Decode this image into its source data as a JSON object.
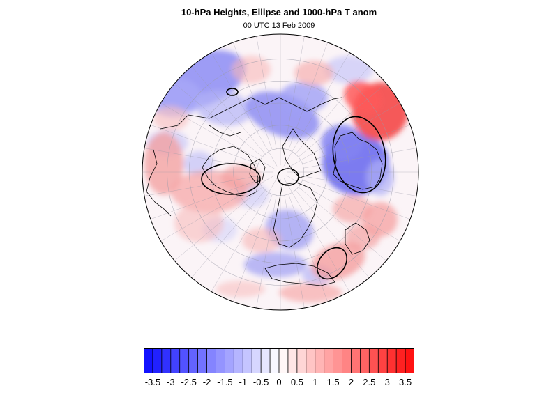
{
  "title": "10-hPa Heights, Ellipse and 1000-hPa T anom",
  "subtitle": "00 UTC 13 Feb 2009",
  "map": {
    "projection": "polar-stereographic-north",
    "background": "#ffffff",
    "grid_color": "#9a9aa8",
    "coastline_color": "#000000",
    "ellipse_color": "#000000",
    "cold_color": "#1212ff",
    "warm_color": "#ff1212",
    "neutral_color": "#ffffff"
  },
  "colorbar": {
    "levels": [
      -3.75,
      -3.5,
      -3.25,
      -3,
      -2.75,
      -2.5,
      -2.25,
      -2,
      -1.75,
      -1.5,
      -1.25,
      -1,
      -0.75,
      -0.5,
      -0.25,
      0,
      0.25,
      0.5,
      0.75,
      1,
      1.25,
      1.5,
      1.75,
      2,
      2.25,
      2.5,
      2.75,
      3,
      3.25,
      3.5,
      3.75
    ],
    "labels": [
      "-3.5",
      "-3",
      "-2.5",
      "-2",
      "-1.5",
      "-1",
      "-0.5",
      "0",
      "0.5",
      "1",
      "1.5",
      "2",
      "2.5",
      "3",
      "3.5"
    ]
  }
}
